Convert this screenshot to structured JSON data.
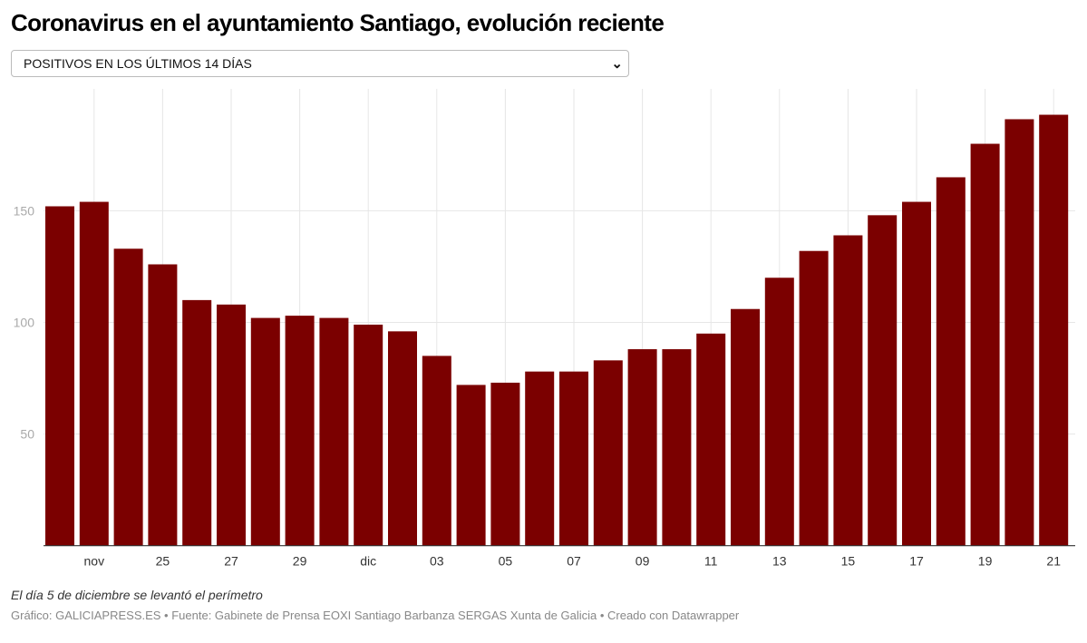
{
  "title": "Coronavirus en el ayuntamiento Santiago, evolución reciente",
  "dropdown": {
    "selected": "POSITIVOS EN LOS ÚLTIMOS 14 DÍAS",
    "icon": "chevron-down-icon"
  },
  "note": "El día 5 de diciembre se levantó el perímetro",
  "source": "Gráfico: GALICIAPRESS.ES • Fuente: Gabinete de Prensa EOXI Santiago Barbanza SERGAS Xunta de Galicia • Creado con Datawrapper",
  "chart_data": {
    "type": "bar",
    "bar_color": "#7b0000",
    "categories": [
      "22 nov",
      "23 nov",
      "24 nov",
      "25 nov",
      "26 nov",
      "27 nov",
      "28 nov",
      "29 nov",
      "30 nov",
      "1 dic",
      "2 dic",
      "3 dic",
      "4 dic",
      "5 dic",
      "6 dic",
      "7 dic",
      "8 dic",
      "9 dic",
      "10 dic",
      "11 dic",
      "12 dic",
      "13 dic",
      "14 dic",
      "15 dic",
      "16 dic",
      "17 dic",
      "18 dic",
      "19 dic",
      "20 dic",
      "21 dic"
    ],
    "values": [
      152,
      154,
      133,
      126,
      110,
      108,
      102,
      103,
      102,
      99,
      96,
      85,
      72,
      73,
      78,
      78,
      83,
      88,
      88,
      95,
      106,
      120,
      132,
      139,
      148,
      154,
      165,
      180,
      191,
      193
    ],
    "x_tick_labels": [
      {
        "index": 1,
        "label": "nov"
      },
      {
        "index": 3,
        "label": "25"
      },
      {
        "index": 5,
        "label": "27"
      },
      {
        "index": 7,
        "label": "29"
      },
      {
        "index": 9,
        "label": "dic"
      },
      {
        "index": 11,
        "label": "03"
      },
      {
        "index": 13,
        "label": "05"
      },
      {
        "index": 15,
        "label": "07"
      },
      {
        "index": 17,
        "label": "09"
      },
      {
        "index": 19,
        "label": "11"
      },
      {
        "index": 21,
        "label": "13"
      },
      {
        "index": 23,
        "label": "15"
      },
      {
        "index": 25,
        "label": "17"
      },
      {
        "index": 27,
        "label": "19"
      },
      {
        "index": 29,
        "label": "21"
      }
    ],
    "y_ticks": [
      50,
      100,
      150
    ],
    "ylim": [
      0,
      200
    ],
    "grid": true
  }
}
